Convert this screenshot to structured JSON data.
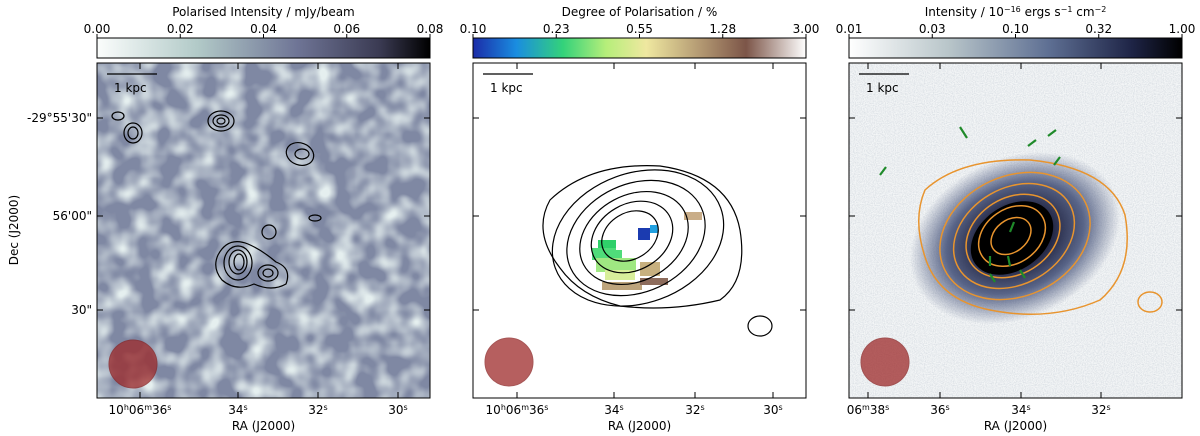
{
  "panels": [
    {
      "colorbar": {
        "title": [
          {
            "t": "Polarised Intensity / mJy/beam"
          }
        ],
        "ticks": [
          "0.00",
          "0.02",
          "0.04",
          "0.06",
          "0.08"
        ]
      },
      "scale_bar": "1 kpc",
      "xlabel": "RA (J2000)",
      "xticks": [
        [
          {
            "t": "10"
          },
          {
            "s": "h"
          },
          {
            "t": "06"
          },
          {
            "s": "m"
          },
          {
            "t": "36"
          },
          {
            "s": "s"
          }
        ],
        [
          {
            "t": "34"
          },
          {
            "s": "s"
          }
        ],
        [
          {
            "t": "32"
          },
          {
            "s": "s"
          }
        ],
        [
          {
            "t": "30"
          },
          {
            "s": "s"
          }
        ]
      ],
      "ylabel": "Dec (J2000)",
      "yticks": [
        "-29°55'30\"",
        "56'00\"",
        "30\""
      ]
    },
    {
      "colorbar": {
        "title": [
          {
            "t": "Degree of Polarisation / %"
          }
        ],
        "ticks": [
          "0.10",
          "0.23",
          "0.55",
          "1.28",
          "3.00"
        ]
      },
      "scale_bar": "1 kpc",
      "xlabel": "RA (J2000)",
      "xticks": [
        [
          {
            "t": "10"
          },
          {
            "s": "h"
          },
          {
            "t": "06"
          },
          {
            "s": "m"
          },
          {
            "t": "36"
          },
          {
            "s": "s"
          }
        ],
        [
          {
            "t": "34"
          },
          {
            "s": "s"
          }
        ],
        [
          {
            "t": "32"
          },
          {
            "s": "s"
          }
        ],
        [
          {
            "t": "30"
          },
          {
            "s": "s"
          }
        ]
      ]
    },
    {
      "colorbar": {
        "title": [
          {
            "t": "Intensity / 10"
          },
          {
            "s": "−16"
          },
          {
            "t": " ergs s"
          },
          {
            "s": "−1"
          },
          {
            "t": " cm"
          },
          {
            "s": "−2"
          }
        ],
        "ticks": [
          "0.01",
          "0.03",
          "0.10",
          "0.32",
          "1.00"
        ]
      },
      "scale_bar": "1 kpc",
      "xlabel": "RA (J2000)",
      "xticks": [
        [
          {
            "t": "06"
          },
          {
            "s": "m"
          },
          {
            "t": "38"
          },
          {
            "s": "s"
          }
        ],
        [
          {
            "t": "36"
          },
          {
            "s": "s"
          }
        ],
        [
          {
            "t": "34"
          },
          {
            "s": "s"
          }
        ],
        [
          {
            "t": "32"
          },
          {
            "s": "s"
          }
        ]
      ]
    }
  ]
}
